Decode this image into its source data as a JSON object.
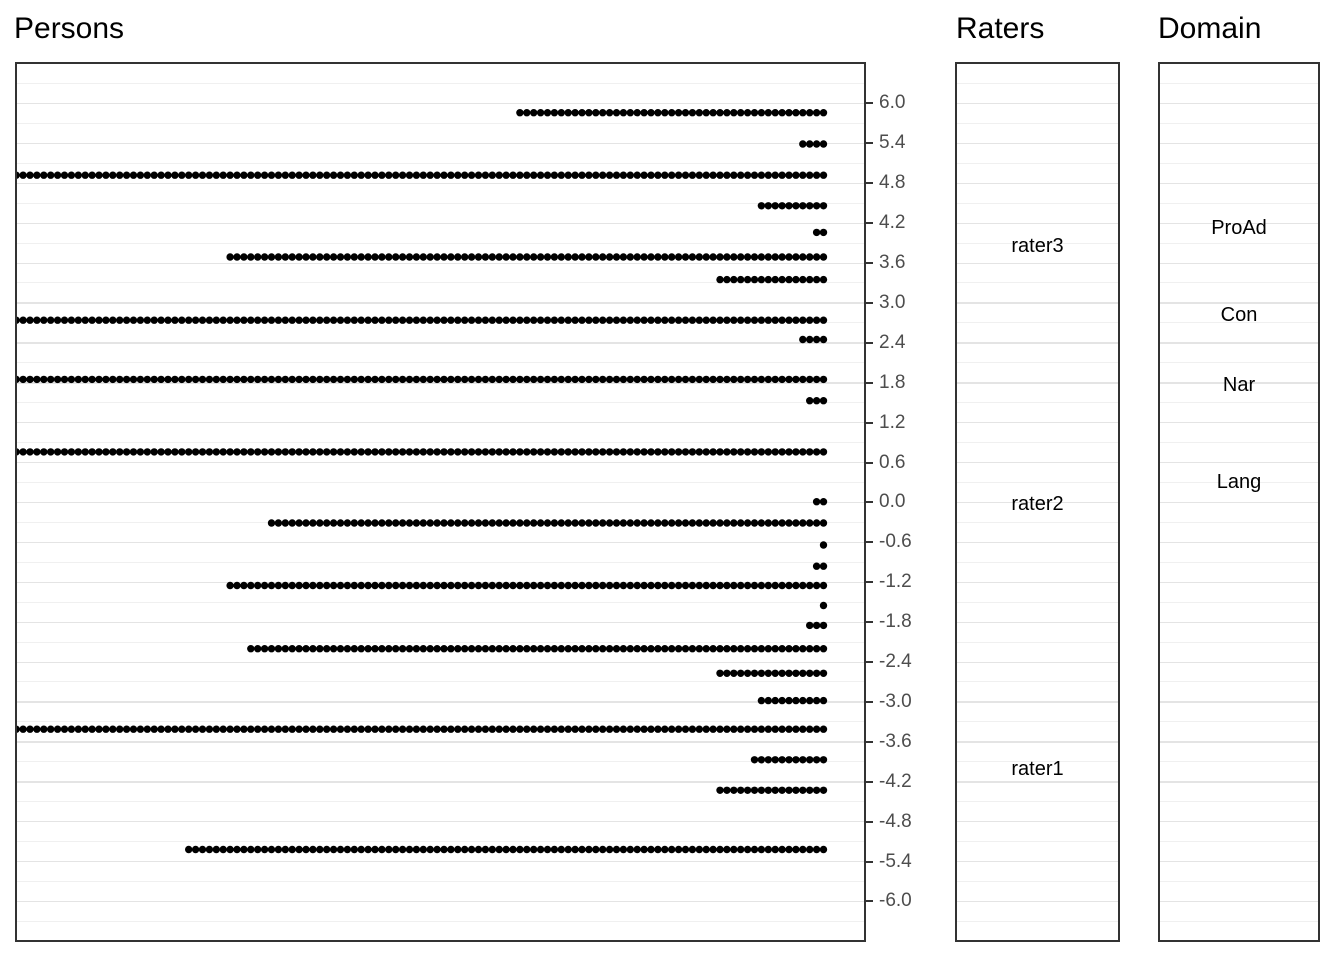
{
  "titles": {
    "persons": "Persons",
    "raters": "Raters",
    "domain": "Domain"
  },
  "colors": {
    "background": "#ffffff",
    "dot": "#000000",
    "panel_border": "#333333",
    "grid_major": "#e4e4e4",
    "grid_minor": "#f0f0f0",
    "tick_mark": "#333333",
    "tick_text": "#4d4d4d",
    "facet_text": "#000000",
    "title_text": "#000000"
  },
  "chart_data": [
    {
      "type": "scatter",
      "subtype": "wright-map-person-dot-histogram",
      "title": "Persons",
      "xlabel": "",
      "ylabel": "",
      "ylim": [
        -6.62,
        6.62
      ],
      "grid": {
        "range": [
          -6.6,
          6.6
        ],
        "minor_step": 0.3,
        "major_step": 0.6,
        "grid_on": true
      },
      "yticks": [
        {
          "v": 6.0,
          "label": "6.0"
        },
        {
          "v": 5.4,
          "label": "5.4"
        },
        {
          "v": 4.8,
          "label": "4.8"
        },
        {
          "v": 4.2,
          "label": "4.2"
        },
        {
          "v": 3.6,
          "label": "3.6"
        },
        {
          "v": 3.0,
          "label": "3.0"
        },
        {
          "v": 2.4,
          "label": "2.4"
        },
        {
          "v": 1.8,
          "label": "1.8"
        },
        {
          "v": 1.2,
          "label": "1.2"
        },
        {
          "v": 0.6,
          "label": "0.6"
        },
        {
          "v": 0.0,
          "label": "0.0"
        },
        {
          "v": -0.6,
          "label": "-0.6"
        },
        {
          "v": -1.2,
          "label": "-1.2"
        },
        {
          "v": -1.8,
          "label": "-1.8"
        },
        {
          "v": -2.4,
          "label": "-2.4"
        },
        {
          "v": -3.0,
          "label": "-3.0"
        },
        {
          "v": -3.6,
          "label": "-3.6"
        },
        {
          "v": -4.2,
          "label": "-4.2"
        },
        {
          "v": -4.8,
          "label": "-4.8"
        },
        {
          "v": -5.4,
          "label": "-5.4"
        },
        {
          "v": -6.0,
          "label": "-6.0"
        }
      ],
      "rows": [
        {
          "theta": 5.86,
          "count": 45
        },
        {
          "theta": 5.39,
          "count": 4
        },
        {
          "theta": 4.92,
          "count": 118
        },
        {
          "theta": 4.46,
          "count": 10
        },
        {
          "theta": 4.06,
          "count": 2
        },
        {
          "theta": 3.69,
          "count": 87
        },
        {
          "theta": 3.35,
          "count": 16
        },
        {
          "theta": 2.74,
          "count": 118
        },
        {
          "theta": 2.45,
          "count": 4
        },
        {
          "theta": 1.85,
          "count": 118
        },
        {
          "theta": 1.53,
          "count": 3
        },
        {
          "theta": 0.76,
          "count": 118
        },
        {
          "theta": 0.01,
          "count": 2
        },
        {
          "theta": -0.31,
          "count": 81
        },
        {
          "theta": -0.64,
          "count": 1
        },
        {
          "theta": -0.96,
          "count": 2
        },
        {
          "theta": -1.25,
          "count": 87
        },
        {
          "theta": -1.55,
          "count": 1
        },
        {
          "theta": -1.85,
          "count": 3
        },
        {
          "theta": -2.2,
          "count": 84
        },
        {
          "theta": -2.57,
          "count": 16
        },
        {
          "theta": -2.98,
          "count": 10
        },
        {
          "theta": -3.41,
          "count": 118
        },
        {
          "theta": -3.87,
          "count": 11
        },
        {
          "theta": -4.33,
          "count": 16
        },
        {
          "theta": -5.22,
          "count": 93
        }
      ]
    },
    {
      "type": "scatter",
      "subtype": "wright-map-facet-labels",
      "title": "Raters",
      "ylim": [
        -6.62,
        6.62
      ],
      "items": [
        {
          "label": "rater3",
          "theta": 3.86
        },
        {
          "label": "rater2",
          "theta": -0.02
        },
        {
          "label": "rater1",
          "theta": -4.01
        }
      ]
    },
    {
      "type": "scatter",
      "subtype": "wright-map-facet-labels",
      "title": "Domain",
      "ylim": [
        -6.62,
        6.62
      ],
      "items": [
        {
          "label": "ProAd",
          "theta": 4.13
        },
        {
          "label": "Con",
          "theta": 2.82
        },
        {
          "label": "Nar",
          "theta": 1.77
        },
        {
          "label": "Lang",
          "theta": 0.3
        }
      ]
    }
  ]
}
